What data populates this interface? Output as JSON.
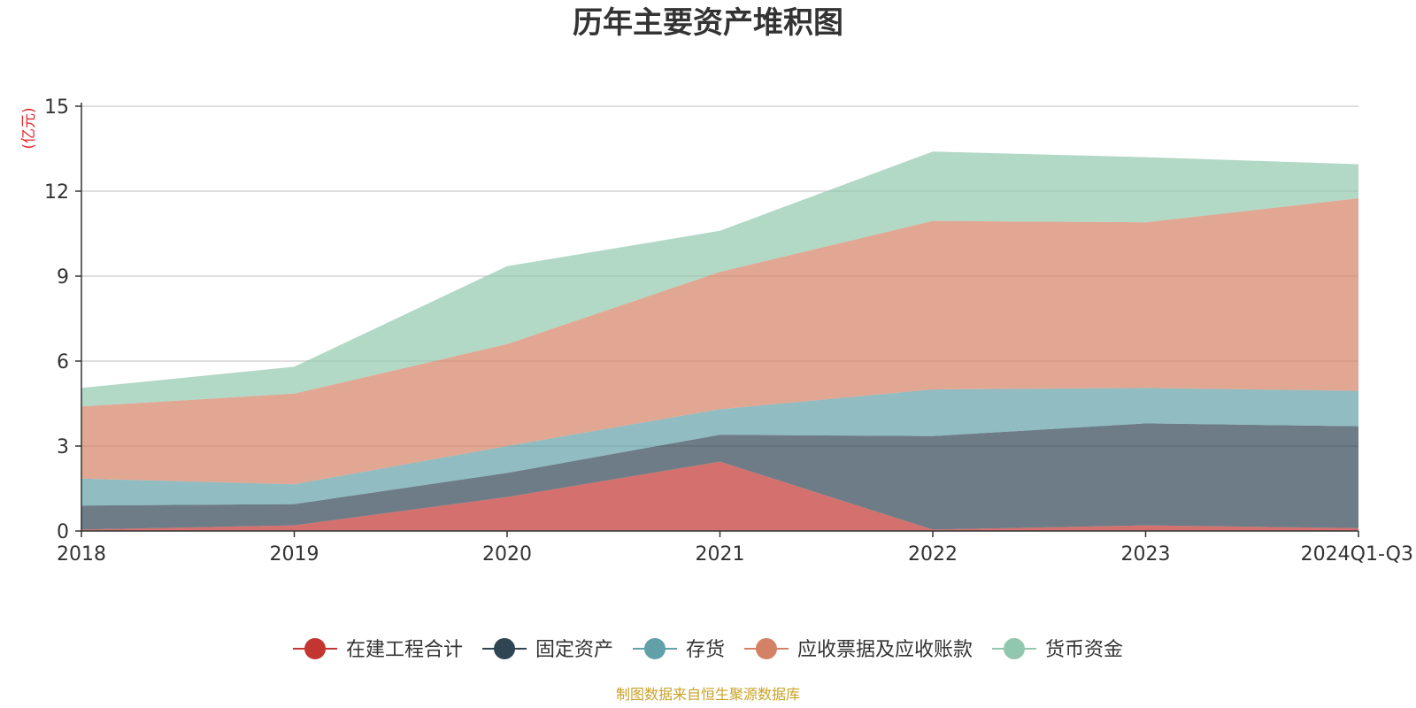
{
  "chart_data": {
    "type": "area",
    "stacked": true,
    "title": "历年主要资产堆积图",
    "unit_label": "(亿元)",
    "source": "制图数据来自恒生聚源数据库",
    "categories": [
      "2018",
      "2019",
      "2020",
      "2021",
      "2022",
      "2023",
      "2024Q1-Q3"
    ],
    "ylim": [
      0,
      15
    ],
    "yticks": [
      0,
      3,
      6,
      9,
      12,
      15
    ],
    "grid": true,
    "legend_position": "bottom",
    "series": [
      {
        "name": "在建工程合计",
        "color": "#c23531",
        "values": [
          0.05,
          0.2,
          1.2,
          2.45,
          0.05,
          0.2,
          0.1
        ]
      },
      {
        "name": "固定资产",
        "color": "#2f4554",
        "values": [
          0.85,
          0.75,
          0.85,
          0.95,
          3.3,
          3.6,
          3.6
        ]
      },
      {
        "name": "存货",
        "color": "#61a0a8",
        "values": [
          0.95,
          0.7,
          0.95,
          0.9,
          1.65,
          1.25,
          1.25
        ]
      },
      {
        "name": "应收票据及应收账款",
        "color": "#d48265",
        "values": [
          2.55,
          3.2,
          3.6,
          4.85,
          5.95,
          5.85,
          6.8
        ]
      },
      {
        "name": "货币资金",
        "color": "#91c7ae",
        "values": [
          0.65,
          0.95,
          2.75,
          1.45,
          2.45,
          2.3,
          1.2
        ]
      }
    ]
  }
}
